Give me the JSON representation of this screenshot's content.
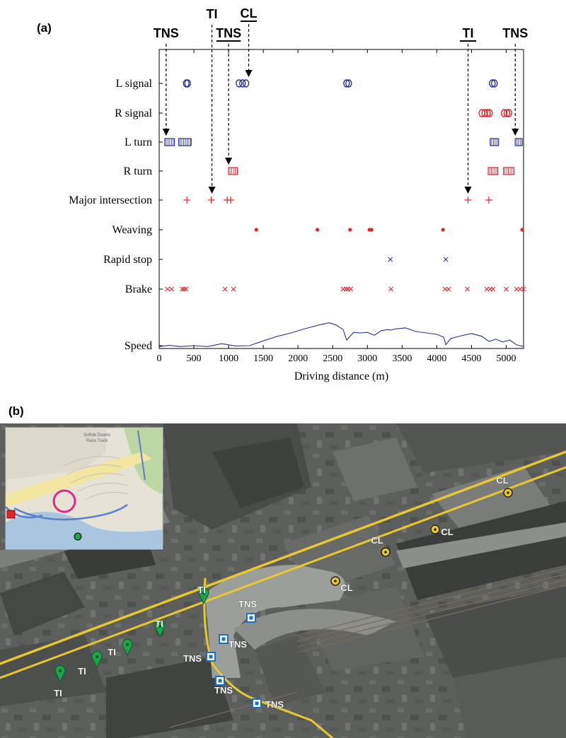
{
  "panel_a_label": "(a)",
  "panel_b_label": "(b)",
  "colors": {
    "blue": "#2a3190",
    "red": "#e3242b",
    "green": "#1fa34a",
    "yellow": "#e8c830",
    "magenta": "#e0298a"
  },
  "chart_data": {
    "type": "scatter",
    "xlabel": "Driving distance (m)",
    "ylabel": "",
    "xlim": [
      0,
      5250
    ],
    "xticks": [
      "0",
      "500",
      "1000",
      "1500",
      "2000",
      "2500",
      "3000",
      "3500",
      "4000",
      "4500",
      "5000"
    ],
    "rows": [
      "L signal",
      "R signal",
      "L turn",
      "R turn",
      "Major intersection",
      "Weaving",
      "Rapid stop",
      "Brake",
      "Speed"
    ],
    "series": [
      {
        "name": "L signal",
        "marker": "circle",
        "color": "#2a3190",
        "x": [
          390,
          410,
          1150,
          1200,
          1250,
          2700,
          2730,
          4800,
          4830
        ]
      },
      {
        "name": "R signal",
        "marker": "circle",
        "color": "#e3242b",
        "x": [
          4650,
          4690,
          4730,
          4760,
          4970,
          5010,
          5040
        ]
      },
      {
        "name": "L turn",
        "marker": "bar",
        "color": "#2a3190",
        "ranges": [
          [
            80,
            220
          ],
          [
            280,
            460
          ],
          [
            4770,
            4890
          ],
          [
            5130,
            5230
          ]
        ]
      },
      {
        "name": "R turn",
        "marker": "bar",
        "color": "#e3242b",
        "ranges": [
          [
            1000,
            1130
          ],
          [
            4740,
            4880
          ],
          [
            4960,
            5110
          ]
        ]
      },
      {
        "name": "Major intersection",
        "marker": "plus",
        "color": "#e3242b",
        "x": [
          400,
          750,
          980,
          1030,
          4450,
          4750
        ]
      },
      {
        "name": "Weaving",
        "marker": "dot",
        "color": "#e3242b",
        "x": [
          1400,
          2280,
          2750,
          3030,
          3060,
          4090,
          5230
        ]
      },
      {
        "name": "Rapid stop",
        "marker": "x",
        "color": "#2a3190",
        "x": [
          3330,
          4130
        ]
      },
      {
        "name": "Brake",
        "marker": "x",
        "color": "#e3242b",
        "x": [
          120,
          180,
          330,
          360,
          390,
          950,
          1070,
          2650,
          2690,
          2720,
          2760,
          3340,
          4120,
          4170,
          4440,
          4720,
          4770,
          4810,
          5000,
          5150,
          5200,
          5250
        ]
      },
      {
        "name": "Speed",
        "marker": "line",
        "color": "#2a3190",
        "x": [
          0,
          150,
          300,
          500,
          700,
          900,
          1100,
          1300,
          1500,
          1700,
          1900,
          2100,
          2300,
          2450,
          2550,
          2650,
          2700,
          2800,
          2900,
          3000,
          3100,
          3200,
          3300,
          3330,
          3400,
          3550,
          3700,
          3850,
          4000,
          4100,
          4130,
          4200,
          4350,
          4500,
          4650,
          4750,
          4850,
          4950,
          5050,
          5150,
          5250
        ],
        "y": [
          0.02,
          0.06,
          0.02,
          0.05,
          0.02,
          0.12,
          0.04,
          0.05,
          0.22,
          0.38,
          0.5,
          0.65,
          0.78,
          0.86,
          0.78,
          0.62,
          0.25,
          0.52,
          0.5,
          0.52,
          0.42,
          0.58,
          0.62,
          0.6,
          0.64,
          0.68,
          0.55,
          0.5,
          0.45,
          0.35,
          0.08,
          0.3,
          0.4,
          0.48,
          0.38,
          0.2,
          0.28,
          0.18,
          0.25,
          0.08,
          0.02
        ]
      }
    ],
    "annotations": [
      {
        "text": "TNS",
        "underline": false,
        "x": 100,
        "target_row": "L turn"
      },
      {
        "text": "TI",
        "underline": false,
        "x": 760,
        "target_row": "Major intersection"
      },
      {
        "text": "TNS",
        "underline": true,
        "x": 1000,
        "target_row": "R turn"
      },
      {
        "text": "CL",
        "underline": true,
        "x": 1290,
        "target_row": "L signal"
      },
      {
        "text": "TI",
        "underline": true,
        "x": 4450,
        "target_row": "Major intersection"
      },
      {
        "text": "TNS",
        "underline": false,
        "x": 5130,
        "target_row": "L turn"
      }
    ]
  },
  "map": {
    "inset": {
      "labels": [
        "Suffolk Downs",
        "Race Track"
      ]
    },
    "markers": [
      {
        "type": "CL",
        "label": "CL"
      },
      {
        "type": "CL",
        "label": "CL"
      },
      {
        "type": "CL",
        "label": "CL"
      },
      {
        "type": "CL",
        "label": "CL"
      },
      {
        "type": "TI",
        "label": "TI"
      },
      {
        "type": "TI",
        "label": "TI"
      },
      {
        "type": "TI",
        "label": "TI"
      },
      {
        "type": "TI",
        "label": "TI"
      },
      {
        "type": "TI",
        "label": "TI"
      },
      {
        "type": "TNS",
        "label": "TNS"
      },
      {
        "type": "TNS",
        "label": "TNS"
      },
      {
        "type": "TNS",
        "label": "TNS"
      },
      {
        "type": "TNS",
        "label": "TNS"
      },
      {
        "type": "TNS",
        "label": "TNS"
      }
    ]
  }
}
